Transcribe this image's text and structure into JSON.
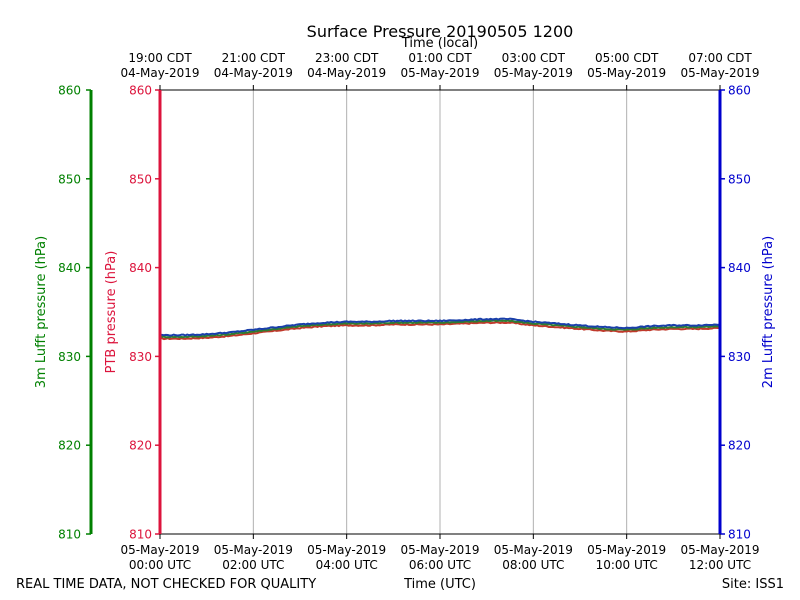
{
  "chart_data": {
    "type": "line",
    "title": "Surface Pressure 20190505 1200",
    "top_xlabel": "Time (local)",
    "xlabel": "Time (UTC)",
    "ylabel_left_outer": "3m Lufft pressure (hPa)",
    "ylabel_left_inner": "PTB pressure (hPa)",
    "ylabel_right": "2m Lufft pressure (hPa)",
    "footer_left": "REAL TIME DATA, NOT CHECKED FOR QUALITY",
    "footer_right": "Site: ISS1",
    "xlim_hours": [
      0,
      12
    ],
    "ylim": [
      810,
      860
    ],
    "yticks": [
      810,
      820,
      830,
      840,
      850,
      860
    ],
    "grid": "vertical",
    "bottom_ticks": [
      {
        "hour": 0,
        "line1": "05-May-2019",
        "line2": "00:00 UTC"
      },
      {
        "hour": 2,
        "line1": "05-May-2019",
        "line2": "02:00 UTC"
      },
      {
        "hour": 4,
        "line1": "05-May-2019",
        "line2": "04:00 UTC"
      },
      {
        "hour": 6,
        "line1": "05-May-2019",
        "line2": "06:00 UTC"
      },
      {
        "hour": 8,
        "line1": "05-May-2019",
        "line2": "08:00 UTC"
      },
      {
        "hour": 10,
        "line1": "05-May-2019",
        "line2": "10:00 UTC"
      },
      {
        "hour": 12,
        "line1": "05-May-2019",
        "line2": "12:00 UTC"
      }
    ],
    "top_ticks": [
      {
        "hour": 0,
        "line1": "19:00 CDT",
        "line2": "04-May-2019"
      },
      {
        "hour": 2,
        "line1": "21:00 CDT",
        "line2": "04-May-2019"
      },
      {
        "hour": 4,
        "line1": "23:00 CDT",
        "line2": "04-May-2019"
      },
      {
        "hour": 6,
        "line1": "01:00 CDT",
        "line2": "05-May-2019"
      },
      {
        "hour": 8,
        "line1": "03:00 CDT",
        "line2": "05-May-2019"
      },
      {
        "hour": 10,
        "line1": "05:00 CDT",
        "line2": "05-May-2019"
      },
      {
        "hour": 12,
        "line1": "07:00 CDT",
        "line2": "05-May-2019"
      }
    ],
    "colors": {
      "ptb": "#dc143c",
      "lufft_3m": "#008000",
      "lufft_2m": "#0000cd",
      "frame": "#000000",
      "grid": "#b0b0b0",
      "ptb_line": "#c0392b",
      "lufft_3m_line": "#2e7d32",
      "lufft_2m_line": "#1a3faa"
    },
    "x": [
      0,
      0.5,
      1,
      1.5,
      2,
      2.5,
      3,
      3.5,
      4,
      4.5,
      5,
      5.5,
      6,
      6.5,
      7,
      7.5,
      8,
      8.5,
      9,
      9.5,
      10,
      10.5,
      11,
      11.5,
      12
    ],
    "series": [
      {
        "name": "PTB pressure",
        "axis": "ptb",
        "color_key": "ptb_line",
        "values": [
          832.0,
          832.0,
          832.1,
          832.3,
          832.6,
          832.9,
          833.2,
          833.4,
          833.5,
          833.5,
          833.6,
          833.6,
          833.6,
          833.7,
          833.8,
          833.8,
          833.5,
          833.3,
          833.1,
          832.9,
          832.8,
          833.0,
          833.1,
          833.1,
          833.2
        ]
      },
      {
        "name": "3m Lufft pressure",
        "axis": "lufft_3m",
        "color_key": "lufft_3m_line",
        "values": [
          832.2,
          832.2,
          832.3,
          832.5,
          832.8,
          833.1,
          833.4,
          833.6,
          833.7,
          833.7,
          833.8,
          833.8,
          833.8,
          833.9,
          834.0,
          834.0,
          833.7,
          833.5,
          833.3,
          833.1,
          833.0,
          833.2,
          833.3,
          833.3,
          833.4
        ]
      },
      {
        "name": "2m Lufft pressure",
        "axis": "lufft_2m",
        "color_key": "lufft_2m_line",
        "values": [
          832.4,
          832.4,
          832.5,
          832.7,
          833.0,
          833.3,
          833.6,
          833.8,
          833.9,
          833.9,
          834.0,
          834.0,
          834.0,
          834.1,
          834.2,
          834.2,
          833.9,
          833.7,
          833.5,
          833.3,
          833.2,
          833.4,
          833.5,
          833.5,
          833.6
        ]
      }
    ]
  }
}
